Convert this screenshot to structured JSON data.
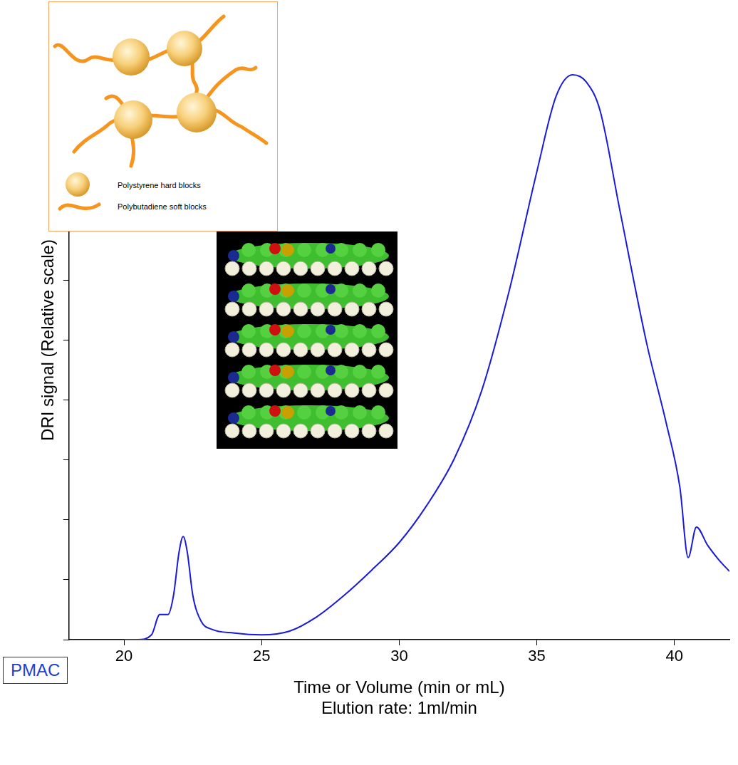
{
  "chart_data": {
    "type": "line",
    "x_label": "Time or Volume (min or mL)",
    "subtitle": "Elution rate: 1ml/min",
    "y_label": "DRI signal (Relative scale)",
    "annotations": [
      "Polystyrene hard blocks",
      "Polybutadiene soft blocks",
      "PMAC"
    ],
    "x": [
      20,
      20.5,
      21,
      21.3,
      21.6,
      21.8,
      22.0,
      22.15,
      22.3,
      22.5,
      22.8,
      23.2,
      24,
      25,
      26,
      27,
      28,
      29,
      30,
      31,
      32,
      33,
      34,
      35,
      35.7,
      36.3,
      36.8,
      37.3,
      38,
      39,
      39.7,
      40.2,
      40.5,
      40.8,
      41.2,
      41.6,
      42
    ],
    "values": [
      0,
      0,
      0.08,
      0.42,
      0.42,
      0.74,
      1.46,
      1.72,
      1.46,
      0.74,
      0.31,
      0.17,
      0.11,
      0.08,
      0.14,
      0.38,
      0.74,
      1.16,
      1.62,
      2.24,
      3.02,
      4.16,
      5.83,
      7.81,
      9.07,
      9.43,
      9.31,
      8.83,
      7.21,
      4.93,
      3.62,
      2.54,
      1.37,
      1.88,
      1.58,
      1.34,
      1.14
    ],
    "color": "#1a1adb",
    "xlim": [
      18,
      42
    ],
    "xticks": [
      20,
      25,
      30,
      35,
      40
    ],
    "ylim": [
      0,
      10
    ],
    "yticks": [
      0,
      1,
      2,
      3,
      4,
      5,
      6,
      7,
      8,
      9,
      10
    ],
    "tick_labels": "x",
    "grid": false
  }
}
